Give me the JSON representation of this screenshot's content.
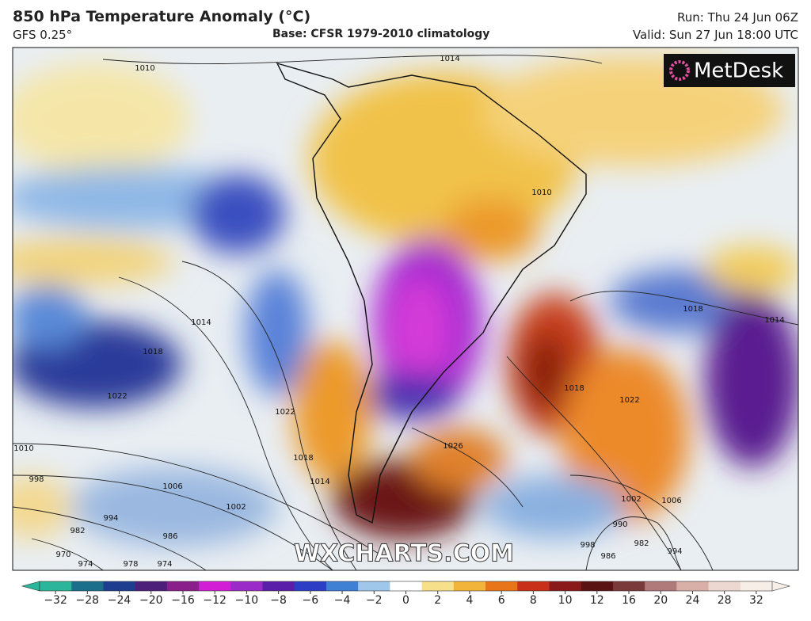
{
  "header": {
    "title": "850 hPa Temperature Anomaly (°C)",
    "model": "GFS 0.25°",
    "base": "Base: CFSR 1979-2010 climatology",
    "run": "Run: Thu 24 Jun 06Z",
    "valid": "Valid: Sun 27 Jun 18:00 UTC"
  },
  "logo": "MetDesk",
  "watermark": "WXCHARTS.COM",
  "isobars": [
    "1010",
    "1014",
    "1010",
    "1014",
    "1018",
    "1022",
    "1018",
    "1014",
    "1022",
    "1018",
    "1014",
    "1026",
    "1022",
    "1018",
    "1010",
    "998",
    "1006",
    "1002",
    "994",
    "986",
    "982",
    "970",
    "974",
    "978",
    "974",
    "1002",
    "1006",
    "990",
    "982",
    "998",
    "986",
    "994"
  ],
  "colorbar": {
    "labels": [
      "−32",
      "−28",
      "−24",
      "−20",
      "−16",
      "−12",
      "−10",
      "−8",
      "−6",
      "−4",
      "−2",
      "0",
      "2",
      "4",
      "6",
      "8",
      "10",
      "12",
      "16",
      "20",
      "24",
      "28",
      "32"
    ],
    "colors": [
      "#2bb59a",
      "#1b6f8a",
      "#1f3d8f",
      "#4b1f7a",
      "#8a1f8c",
      "#d21fd6",
      "#9a2bc8",
      "#5a1fa8",
      "#2c3fc4",
      "#3f7fd4",
      "#9fc7ea",
      "#ffffff",
      "#f7e08a",
      "#f2b43a",
      "#e8751a",
      "#c8301a",
      "#8a1a1a",
      "#5a1212",
      "#7a3a3a",
      "#b07a7a",
      "#d8b0a8",
      "#ecd8d0",
      "#f7eee8"
    ]
  }
}
